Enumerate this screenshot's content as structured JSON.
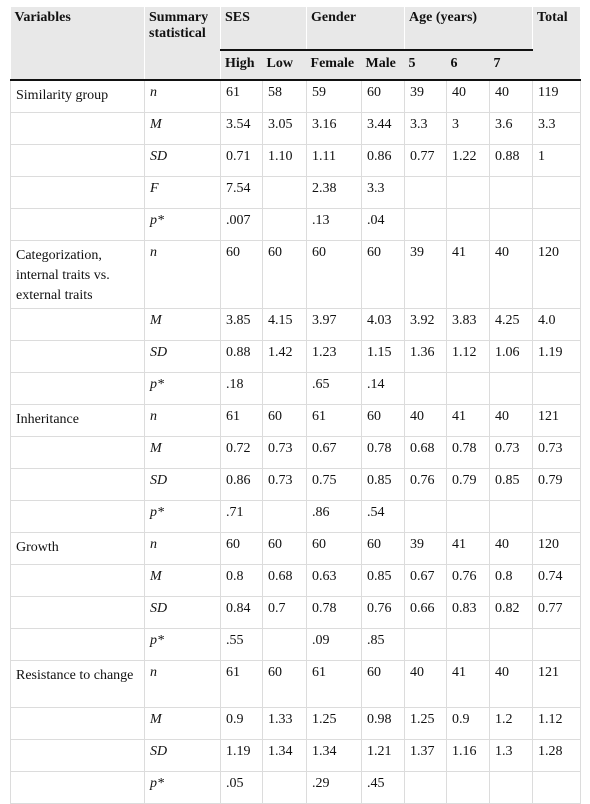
{
  "header": {
    "variables": "Variables",
    "summary": "Summary statistical",
    "ses": "SES",
    "gender": "Gender",
    "age": "Age (years)",
    "total": "Total",
    "high": "High",
    "low": "Low",
    "female": "Female",
    "male": "Male",
    "age5": "5",
    "age6": "6",
    "age7": "7"
  },
  "rows": [
    {
      "var": "Similarity group",
      "stat": "n",
      "v": [
        "61",
        "58",
        "59",
        "60",
        "39",
        "40",
        "40",
        "119"
      ]
    },
    {
      "var": "",
      "stat": "M",
      "v": [
        "3.54",
        "3.05",
        "3.16",
        "3.44",
        "3.3",
        "3",
        "3.6",
        "3.3"
      ]
    },
    {
      "var": "",
      "stat": "SD",
      "v": [
        "0.71",
        "1.10",
        "1.11",
        "0.86",
        "0.77",
        "1.22",
        "0.88",
        "1"
      ]
    },
    {
      "var": "",
      "stat": "F",
      "v": [
        "7.54",
        "",
        "2.38",
        "3.3",
        "",
        "",
        "",
        ""
      ]
    },
    {
      "var": "",
      "stat": "p*",
      "v": [
        ".007",
        "",
        ".13",
        ".04",
        "",
        "",
        "",
        ""
      ]
    },
    {
      "var": "Categorization, internal traits vs. external traits",
      "stat": "n",
      "v": [
        "60",
        "60",
        "60",
        "60",
        "39",
        "41",
        "40",
        "120"
      ]
    },
    {
      "var": "",
      "stat": "M",
      "v": [
        "3.85",
        "4.15",
        "3.97",
        "4.03",
        "3.92",
        "3.83",
        "4.25",
        "4.0"
      ]
    },
    {
      "var": "",
      "stat": "SD",
      "v": [
        "0.88",
        "1.42",
        "1.23",
        "1.15",
        "1.36",
        "1.12",
        "1.06",
        "1.19"
      ]
    },
    {
      "var": "",
      "stat": "p*",
      "v": [
        ".18",
        "",
        ".65",
        ".14",
        "",
        "",
        "",
        ""
      ]
    },
    {
      "var": "Inheritance",
      "stat": "n",
      "v": [
        "61",
        "60",
        "61",
        "60",
        "40",
        "41",
        "40",
        "121"
      ]
    },
    {
      "var": "",
      "stat": "M",
      "v": [
        "0.72",
        "0.73",
        "0.67",
        "0.78",
        "0.68",
        "0.78",
        "0.73",
        "0.73"
      ]
    },
    {
      "var": "",
      "stat": "SD",
      "v": [
        "0.86",
        "0.73",
        "0.75",
        "0.85",
        "0.76",
        "0.79",
        "0.85",
        "0.79"
      ]
    },
    {
      "var": "",
      "stat": "p*",
      "v": [
        ".71",
        "",
        ".86",
        ".54",
        "",
        "",
        "",
        ""
      ]
    },
    {
      "var": "Growth",
      "stat": "n",
      "v": [
        "60",
        "60",
        "60",
        "60",
        "39",
        "41",
        "40",
        "120"
      ]
    },
    {
      "var": "",
      "stat": "M",
      "v": [
        "0.8",
        "0.68",
        "0.63",
        "0.85",
        "0.67",
        "0.76",
        "0.8",
        "0.74"
      ]
    },
    {
      "var": "",
      "stat": "SD",
      "v": [
        "0.84",
        "0.7",
        "0.78",
        "0.76",
        "0.66",
        "0.83",
        "0.82",
        "0.77"
      ]
    },
    {
      "var": "",
      "stat": "p*",
      "v": [
        ".55",
        "",
        ".09",
        ".85",
        "",
        "",
        "",
        ""
      ]
    },
    {
      "var": "Resistance to change",
      "stat": "n",
      "v": [
        "61",
        "60",
        "61",
        "60",
        "40",
        "41",
        "40",
        "121"
      ]
    },
    {
      "var": "",
      "stat": "M",
      "v": [
        "0.9",
        "1.33",
        "1.25",
        "0.98",
        "1.25",
        "0.9",
        "1.2",
        "1.12"
      ]
    },
    {
      "var": "",
      "stat": "SD",
      "v": [
        "1.19",
        "1.34",
        "1.34",
        "1.21",
        "1.37",
        "1.16",
        "1.3",
        "1.28"
      ]
    },
    {
      "var": "",
      "stat": "p*",
      "v": [
        ".05",
        "",
        ".29",
        ".45",
        "",
        "",
        "",
        ""
      ]
    }
  ]
}
